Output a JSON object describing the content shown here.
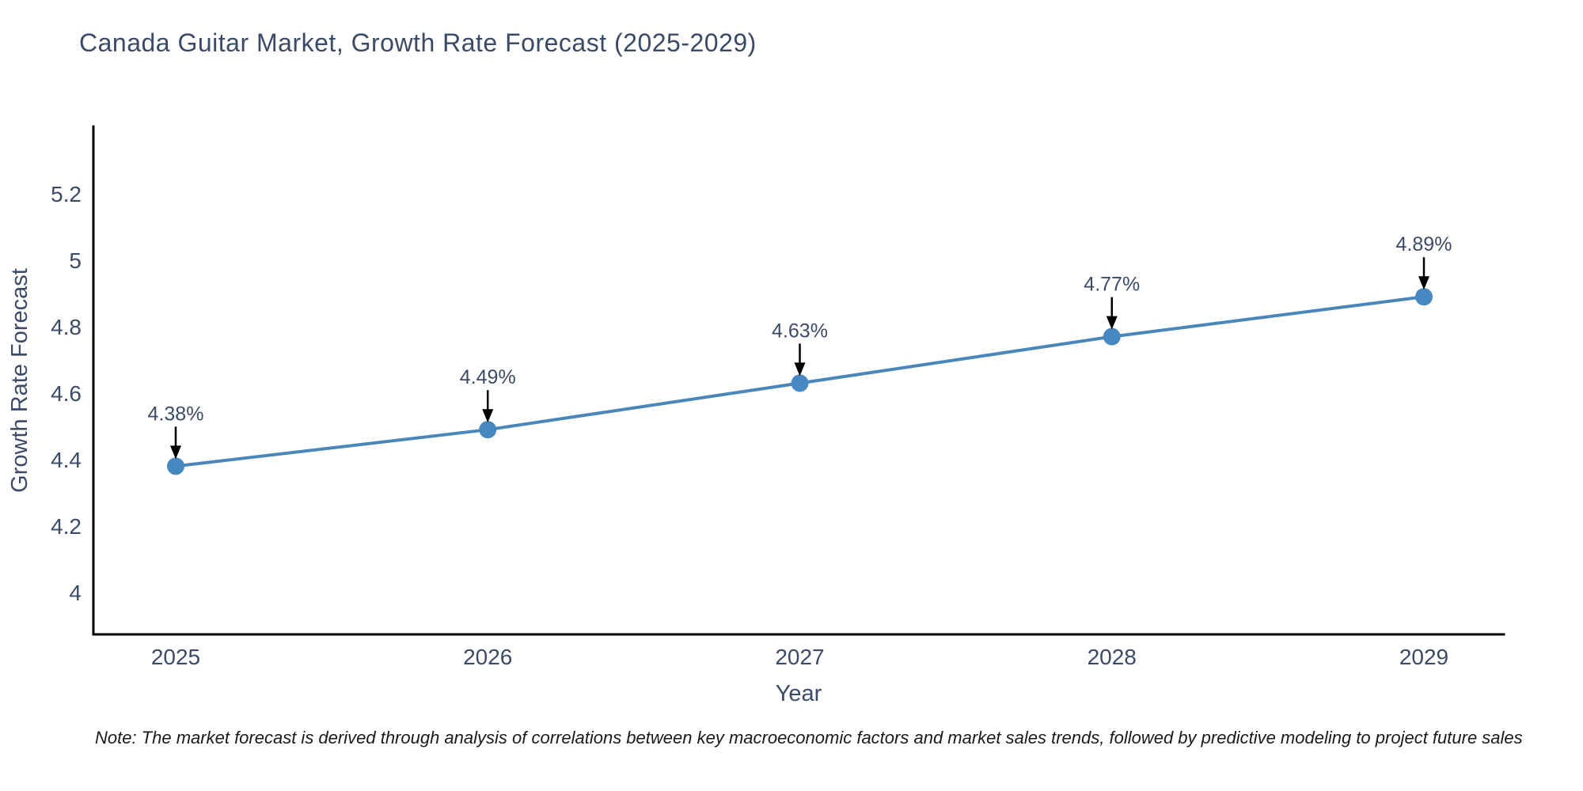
{
  "note": "Note: The market forecast is derived through analysis of correlations between key macroeconomic factors and market sales trends, followed by predictive modeling to project future sales",
  "chart_data": {
    "type": "line",
    "title": "Canada Guitar Market, Growth Rate Forecast (2025-2029)",
    "xlabel": "Year",
    "ylabel": "Growth Rate Forecast",
    "x": [
      2025,
      2026,
      2027,
      2028,
      2029
    ],
    "values": [
      4.38,
      4.49,
      4.63,
      4.77,
      4.89
    ],
    "point_labels": [
      "4.38%",
      "4.49%",
      "4.63%",
      "4.77%",
      "4.89%"
    ],
    "yticks": [
      4,
      4.2,
      4.4,
      4.6,
      4.8,
      5,
      5.2
    ],
    "ylim": [
      3.87,
      5.4
    ],
    "grid": false,
    "legend": "none",
    "annotation_style": "down-arrow-to-point",
    "colors": {
      "line": "#4a86ba",
      "marker": "#4689c0",
      "axis": "#000000",
      "text": "#3b4a66",
      "annotation_arrow": "#000000"
    }
  }
}
